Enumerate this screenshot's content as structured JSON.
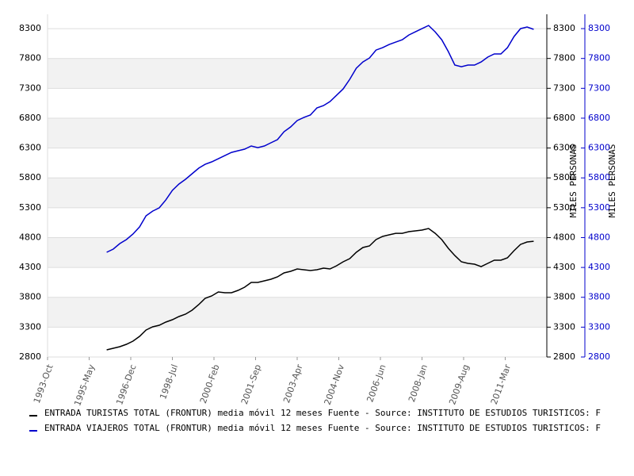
{
  "chart_data": {
    "type": "line",
    "y_label": "MILES PERSONAS",
    "y2_label": "MILES PERSONAS",
    "xlim": [
      "1993-Oct",
      "2012-Oct"
    ],
    "xticks": [
      "1993-Oct",
      "1995-May",
      "1996-Dec",
      "1998-Jul",
      "2000-Feb",
      "2001-Sep",
      "2003-Apr",
      "2004-Nov",
      "2006-Jun",
      "2008-Jan",
      "2009-Aug",
      "2011-Mar"
    ],
    "ylim": [
      2800,
      8540
    ],
    "yticks": [
      2800,
      3300,
      3800,
      4300,
      4800,
      5300,
      5800,
      6300,
      6800,
      7300,
      7800,
      8300
    ],
    "y2lim": [
      2800,
      8540
    ],
    "y2ticks": [
      2800,
      3300,
      3800,
      4300,
      4800,
      5300,
      5800,
      6300,
      6800,
      7300,
      7800,
      8300
    ],
    "grid": "bands",
    "x": [
      "1996-Jan",
      "1996-Apr",
      "1996-Jul",
      "1996-Oct",
      "1997-Jan",
      "1997-Apr",
      "1997-Jul",
      "1997-Oct",
      "1998-Jan",
      "1998-Apr",
      "1998-Jul",
      "1998-Oct",
      "1999-Jan",
      "1999-Apr",
      "1999-Jul",
      "1999-Oct",
      "2000-Jan",
      "2000-Apr",
      "2000-Jul",
      "2000-Oct",
      "2001-Jan",
      "2001-Apr",
      "2001-Jul",
      "2001-Oct",
      "2002-Jan",
      "2002-Apr",
      "2002-Jul",
      "2002-Oct",
      "2003-Jan",
      "2003-Apr",
      "2003-Jul",
      "2003-Oct",
      "2004-Jan",
      "2004-Apr",
      "2004-Jul",
      "2004-Oct",
      "2005-Jan",
      "2005-Apr",
      "2005-Jul",
      "2005-Oct",
      "2006-Jan",
      "2006-Apr",
      "2006-Jul",
      "2006-Oct",
      "2007-Jan",
      "2007-Apr",
      "2007-Jul",
      "2007-Oct",
      "2008-Jan",
      "2008-Apr",
      "2008-Jul",
      "2008-Oct",
      "2009-Jan",
      "2009-Apr",
      "2009-Jul",
      "2009-Oct",
      "2010-Jan",
      "2010-Apr",
      "2010-Jul",
      "2010-Oct",
      "2011-Jan",
      "2011-Apr",
      "2011-Jul",
      "2011-Oct",
      "2012-Jan",
      "2012-Apr"
    ],
    "series": [
      {
        "name": "ENTRADA TURISTAS TOTAL (FRONTUR) media móvil 12 meses  Fuente - Source: INSTITUTO DE ESTUDIOS TURISTICOS: F",
        "color": "#000000",
        "values": [
          2920,
          2946,
          2973,
          3013,
          3066,
          3145,
          3252,
          3305,
          3331,
          3385,
          3424,
          3478,
          3517,
          3584,
          3677,
          3783,
          3823,
          3889,
          3876,
          3876,
          3916,
          3969,
          4049,
          4049,
          4075,
          4102,
          4142,
          4208,
          4235,
          4275,
          4261,
          4248,
          4261,
          4288,
          4275,
          4328,
          4394,
          4447,
          4554,
          4633,
          4660,
          4766,
          4819,
          4846,
          4872,
          4872,
          4899,
          4912,
          4926,
          4952,
          4872,
          4766,
          4620,
          4500,
          4394,
          4368,
          4354,
          4314,
          4368,
          4421,
          4421,
          4461,
          4580,
          4686,
          4726,
          4739
        ]
      },
      {
        "name": "ENTRADA VIAJEROS TOTAL (FRONTUR) media móvil 12 meses  Fuente - Source: INSTITUTO DE ESTUDIOS TURISTICOS: F",
        "color": "#0000cc",
        "axis": "y2",
        "values": [
          4554,
          4607,
          4700,
          4766,
          4859,
          4979,
          5165,
          5244,
          5298,
          5430,
          5590,
          5696,
          5776,
          5869,
          5962,
          6028,
          6068,
          6121,
          6174,
          6227,
          6254,
          6281,
          6334,
          6307,
          6334,
          6387,
          6440,
          6573,
          6653,
          6759,
          6812,
          6852,
          6972,
          7011,
          7078,
          7184,
          7290,
          7450,
          7636,
          7742,
          7808,
          7941,
          7981,
          8034,
          8074,
          8114,
          8193,
          8247,
          8300,
          8353,
          8247,
          8114,
          7915,
          7689,
          7662,
          7689,
          7689,
          7742,
          7822,
          7875,
          7875,
          7981,
          8167,
          8300,
          8327,
          8287
        ]
      }
    ]
  }
}
